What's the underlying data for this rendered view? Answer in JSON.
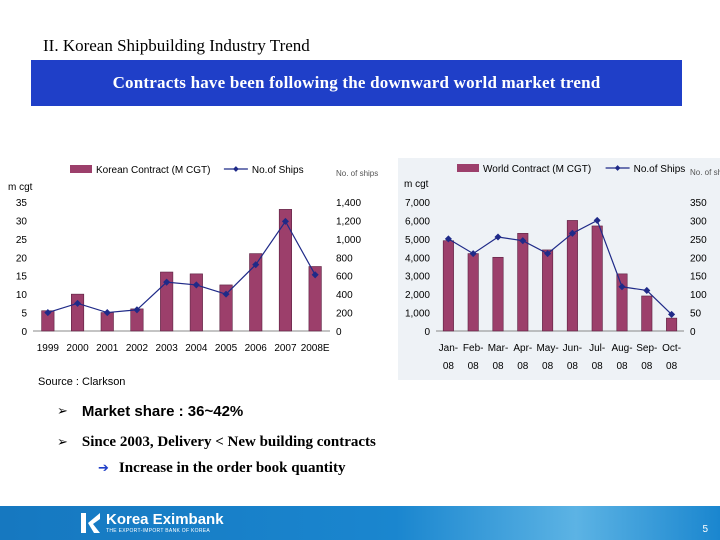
{
  "slide": {
    "title": "II. Korean Shipbuilding Industry Trend",
    "banner": "Contracts have been following the downward world market trend",
    "source": "Source : Clarkson",
    "bullets": [
      "Market share : 36~42%",
      "Since 2003, Delivery < New building contracts",
      "Increase in the order book quantity"
    ],
    "logo_name": "Korea Eximbank",
    "logo_tagline": "THE EXPORT-IMPORT BANK OF KOREA",
    "page_number": "5"
  },
  "colors": {
    "banner": "#1f3fc8",
    "bar": "#9c3f6b",
    "line": "#1f2a88",
    "footer": "#1a86cf"
  },
  "chart_data": [
    {
      "type": "bar",
      "title": "",
      "legend": {
        "bar": "Korean Contract (M CGT)",
        "line": "No.of Ships"
      },
      "ylabel_left": "m cgt",
      "ylabel_right": "No. of ships",
      "categories": [
        "1999",
        "2000",
        "2001",
        "2002",
        "2003",
        "2004",
        "2005",
        "2006",
        "2007",
        "2008E"
      ],
      "series": [
        {
          "name": "Korean Contract (M CGT)",
          "axis": "left",
          "kind": "bar",
          "values": [
            5.5,
            10,
            5,
            6,
            16,
            15.5,
            12.5,
            21,
            33,
            17.5
          ]
        },
        {
          "name": "No.of Ships",
          "axis": "right",
          "kind": "line",
          "values": [
            200,
            300,
            200,
            230,
            530,
            500,
            400,
            720,
            1190,
            610
          ]
        }
      ],
      "ylim_left": [
        0,
        35
      ],
      "ylim_right": [
        0,
        1400
      ],
      "yticks_left": [
        "0",
        "5",
        "10",
        "15",
        "20",
        "25",
        "30",
        "35"
      ],
      "yticks_right": [
        "0",
        "200",
        "400",
        "600",
        "800",
        "1,000",
        "1,200",
        "1,400"
      ]
    },
    {
      "type": "bar",
      "title": "",
      "legend": {
        "bar": "World Contract (M CGT)",
        "line": "No.of Ships"
      },
      "ylabel_left": "m cgt",
      "ylabel_right": "No. of ships",
      "categories": [
        "Jan-08",
        "Feb-08",
        "Mar-08",
        "Apr-08",
        "May-08",
        "Jun-08",
        "Jul-08",
        "Aug-08",
        "Sep-08",
        "Oct-08"
      ],
      "series": [
        {
          "name": "World Contract (M CGT)",
          "axis": "left",
          "kind": "bar",
          "values": [
            4900,
            4200,
            4000,
            5300,
            4400,
            6000,
            5700,
            3100,
            1900,
            700
          ]
        },
        {
          "name": "No.of Ships",
          "axis": "right",
          "kind": "line",
          "values": [
            250,
            210,
            255,
            245,
            210,
            265,
            300,
            120,
            110,
            45
          ]
        }
      ],
      "ylim_left": [
        0,
        7000
      ],
      "ylim_right": [
        0,
        350
      ],
      "yticks_left": [
        "0",
        "1,000",
        "2,000",
        "3,000",
        "4,000",
        "5,000",
        "6,000",
        "7,000"
      ],
      "yticks_right": [
        "0",
        "50",
        "100",
        "150",
        "200",
        "250",
        "300",
        "350"
      ]
    }
  ]
}
